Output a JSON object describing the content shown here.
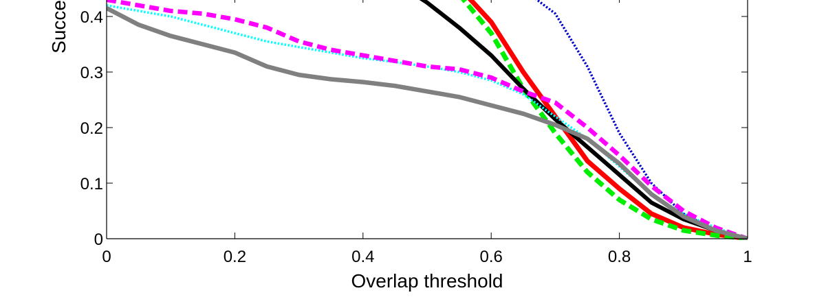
{
  "chart_data": {
    "type": "line",
    "xlabel": "Overlap threshold",
    "ylabel_visible": "Succe",
    "xlim": [
      0,
      1
    ],
    "ylim": [
      0,
      0.43
    ],
    "xticks": [
      0,
      0.2,
      0.4,
      0.6,
      0.8,
      1
    ],
    "xtick_labels": [
      "0",
      "0.2",
      "0.4",
      "0.6",
      "0.8",
      "1"
    ],
    "yticks": [
      0,
      0.1,
      0.2,
      0.3,
      0.4
    ],
    "ytick_labels": [
      "0",
      "0.1",
      "0.2",
      "0.3",
      "0.4"
    ],
    "grid": false,
    "series": [
      {
        "color": "#0000cc",
        "style": "dotted",
        "x": [
          0.66,
          0.7,
          0.75,
          0.8,
          0.85,
          0.9,
          0.95,
          1.0
        ],
        "y": [
          0.44,
          0.405,
          0.31,
          0.19,
          0.1,
          0.045,
          0.015,
          0.0
        ]
      },
      {
        "color": "#ff0000",
        "style": "solid",
        "x": [
          0.56,
          0.6,
          0.65,
          0.7,
          0.75,
          0.8,
          0.85,
          0.9,
          0.95,
          1.0
        ],
        "y": [
          0.44,
          0.39,
          0.3,
          0.22,
          0.14,
          0.09,
          0.045,
          0.02,
          0.008,
          0.0
        ]
      },
      {
        "color": "#00ee00",
        "style": "dashed",
        "x": [
          0.55,
          0.6,
          0.65,
          0.7,
          0.75,
          0.8,
          0.85,
          0.9,
          0.95,
          1.0
        ],
        "y": [
          0.44,
          0.37,
          0.27,
          0.19,
          0.12,
          0.07,
          0.035,
          0.015,
          0.006,
          0.0
        ]
      },
      {
        "color": "#000000",
        "style": "solid",
        "x": [
          0.48,
          0.5,
          0.55,
          0.6,
          0.65,
          0.7,
          0.75,
          0.8,
          0.85,
          0.9,
          0.95,
          1.0
        ],
        "y": [
          0.44,
          0.425,
          0.38,
          0.33,
          0.27,
          0.215,
          0.165,
          0.115,
          0.065,
          0.035,
          0.015,
          0.0
        ]
      },
      {
        "color": "#00ffff",
        "style": "dotted",
        "x": [
          0.0,
          0.05,
          0.1,
          0.15,
          0.2,
          0.25,
          0.3,
          0.35,
          0.4,
          0.45,
          0.5,
          0.55,
          0.6,
          0.65,
          0.7,
          0.75,
          0.8,
          0.85,
          0.9,
          0.95,
          1.0
        ],
        "y": [
          0.42,
          0.41,
          0.4,
          0.385,
          0.37,
          0.355,
          0.345,
          0.335,
          0.325,
          0.318,
          0.31,
          0.3,
          0.285,
          0.26,
          0.22,
          0.18,
          0.13,
          0.08,
          0.045,
          0.02,
          0.0
        ]
      },
      {
        "color": "#ff00ff",
        "style": "dashed",
        "x": [
          0.0,
          0.05,
          0.1,
          0.15,
          0.2,
          0.25,
          0.3,
          0.35,
          0.4,
          0.45,
          0.5,
          0.55,
          0.6,
          0.65,
          0.7,
          0.75,
          0.8,
          0.85,
          0.9,
          0.95,
          1.0
        ],
        "y": [
          0.43,
          0.42,
          0.41,
          0.405,
          0.395,
          0.38,
          0.355,
          0.34,
          0.33,
          0.32,
          0.31,
          0.305,
          0.29,
          0.265,
          0.245,
          0.2,
          0.15,
          0.095,
          0.05,
          0.02,
          0.0
        ]
      },
      {
        "color": "#808080",
        "style": "solid",
        "x": [
          0.0,
          0.05,
          0.1,
          0.15,
          0.2,
          0.25,
          0.3,
          0.35,
          0.4,
          0.45,
          0.5,
          0.55,
          0.6,
          0.65,
          0.7,
          0.75,
          0.8,
          0.85,
          0.9,
          0.95,
          1.0
        ],
        "y": [
          0.415,
          0.385,
          0.365,
          0.35,
          0.335,
          0.31,
          0.295,
          0.287,
          0.282,
          0.275,
          0.265,
          0.255,
          0.24,
          0.225,
          0.205,
          0.18,
          0.135,
          0.08,
          0.04,
          0.015,
          0.0
        ]
      }
    ]
  }
}
